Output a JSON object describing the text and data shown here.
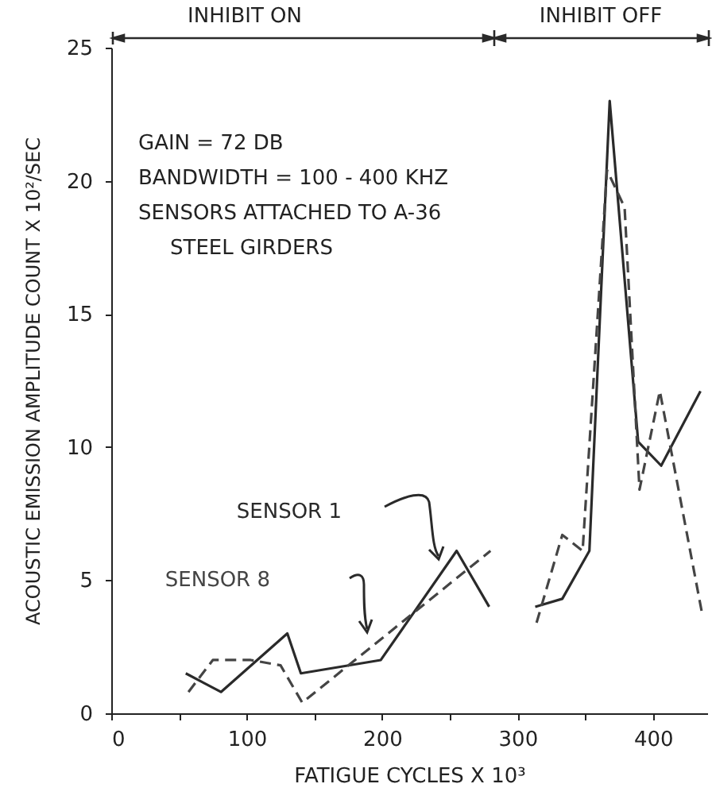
{
  "chart_data": {
    "type": "line",
    "xlabel": "FATIGUE CYCLES X 10³",
    "ylabel": "ACOUSTIC EMISSION AMPLITUDE COUNT X 10²/SEC",
    "xlim": [
      0,
      440
    ],
    "xticks": [
      0,
      {
        "value": 50,
        "label": null
      },
      100,
      {
        "value": 150,
        "label": null
      },
      200,
      {
        "value": 250,
        "label": null
      },
      300,
      {
        "value": 350,
        "label": null
      },
      400
    ],
    "ylim": [
      0,
      25
    ],
    "yticks": [
      0,
      5,
      10,
      15,
      20,
      25
    ],
    "grid": false,
    "marker": "none",
    "series": [
      {
        "name": "SENSOR 1",
        "color": "#2a2a2a",
        "line_style": "solid",
        "x": [
          55,
          81,
          130,
          140,
          199,
          255,
          279,
          297,
          313,
          333,
          353,
          368,
          389,
          406,
          435
        ],
        "values": [
          1.5,
          0.8,
          3.0,
          1.5,
          2.0,
          6.1,
          4.0,
          null,
          4.0,
          4.3,
          6.1,
          23.0,
          10.2,
          9.3,
          12.1
        ]
      },
      {
        "name": "SENSOR 8",
        "color": "#444444",
        "line_style": "dashed",
        "x": [
          57,
          75,
          103,
          125,
          141,
          280,
          297,
          314,
          333,
          348,
          366,
          379,
          390,
          405,
          436
        ],
        "values": [
          0.8,
          2.0,
          2.0,
          1.8,
          0.4,
          6.1,
          null,
          3.4,
          6.7,
          6.1,
          20.4,
          19.0,
          8.4,
          12.1,
          3.8
        ]
      }
    ],
    "annotations": [
      "INHIBIT ON",
      "INHIBIT OFF",
      "GAIN = 72 DB",
      "BANDWIDTH = 100 - 400 KHZ",
      "SENSORS ATTACHED TO A-36",
      "STEEL GIRDERS"
    ]
  }
}
